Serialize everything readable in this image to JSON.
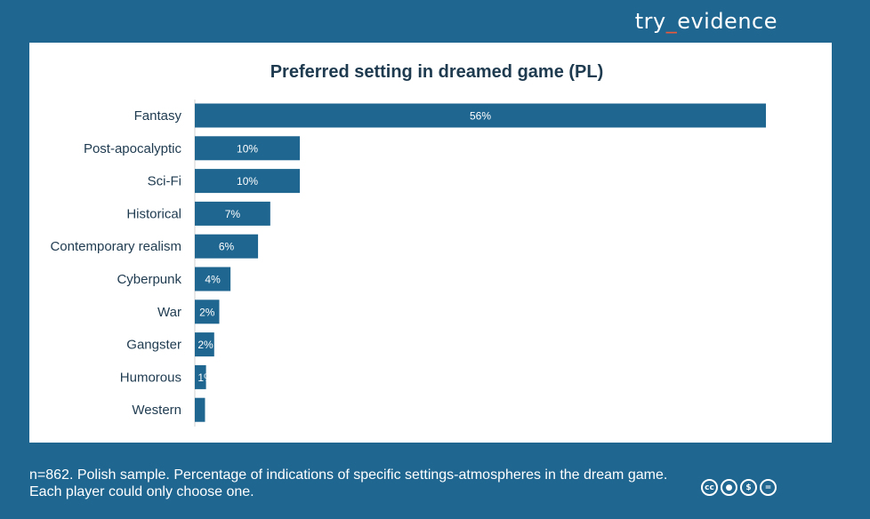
{
  "brand": {
    "prefix": "try",
    "underscore": "_",
    "suffix": "evidence"
  },
  "footer": {
    "line1": "n=862. Polish sample. Percentage of indications of specific settings-atmospheres in the dream game.",
    "line2": "Each player could only choose one."
  },
  "license_icons": [
    "cc-icon",
    "by-icon",
    "nc-icon",
    "nd-icon"
  ],
  "colors": {
    "background": "#1f6690",
    "bar": "#1f6690",
    "title": "#1e3a4f",
    "accent": "#e8593b"
  },
  "chart_data": {
    "type": "bar",
    "orientation": "horizontal",
    "title": "Preferred setting in dreamed game (PL)",
    "categories": [
      "Fantasy",
      "Post-apocalyptic",
      "Sci-Fi",
      "Historical",
      "Contemporary realism",
      "Cyberpunk",
      "War",
      "Gangster",
      "Humorous",
      "Western"
    ],
    "values": [
      56,
      10.3,
      10.3,
      7.4,
      6.2,
      3.5,
      2.4,
      1.9,
      1.1,
      1.0
    ],
    "labels": [
      "56%",
      "10%",
      "10%",
      "7%",
      "6%",
      "4%",
      "2%",
      "2%",
      "1%",
      ""
    ],
    "xlim": [
      0,
      60
    ],
    "grid": false,
    "legend": "none"
  }
}
